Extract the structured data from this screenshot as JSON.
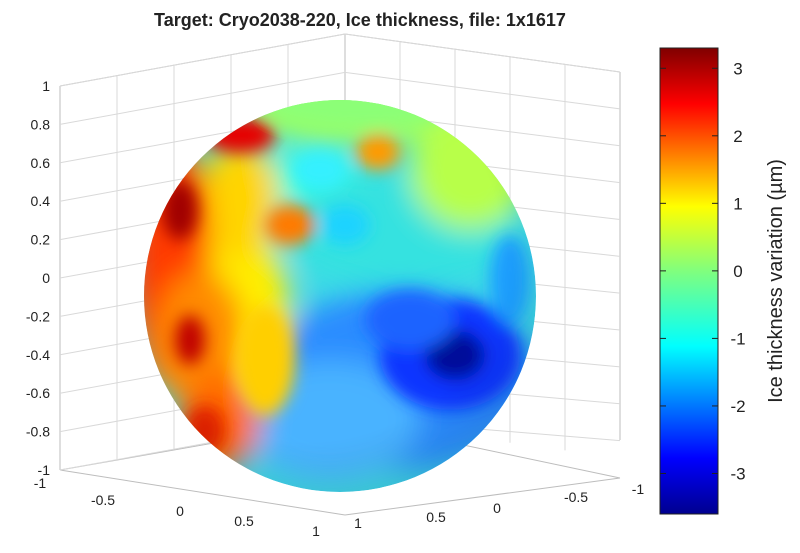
{
  "chart_data": {
    "type": "heatmap",
    "title": "Target: Cryo2038-220, Ice thickness, file: 1x1617",
    "colorbar": {
      "label": "Ice thickness variation (µm)",
      "range": [
        -3.6,
        3.3
      ],
      "ticks": [
        "3",
        "2",
        "1",
        "0",
        "-1",
        "-2",
        "-3"
      ],
      "tick_values": [
        3,
        2,
        1,
        0,
        -1,
        -2,
        -3
      ],
      "colormap": "jet"
    },
    "z_axis": {
      "range": [
        -1,
        1
      ],
      "ticks": [
        "1",
        "0.8",
        "0.6",
        "0.4",
        "0.2",
        "0",
        "-0.2",
        "-0.4",
        "-0.6",
        "-0.8",
        "-1"
      ]
    },
    "x_axis": {
      "range": [
        -1,
        1
      ],
      "ticks": [
        "-1",
        "-0.5",
        "0",
        "0.5",
        "1"
      ]
    },
    "y_axis": {
      "range": [
        -1,
        1
      ],
      "ticks": [
        "1",
        "0.5",
        "0",
        "-0.5",
        "-1"
      ]
    },
    "grid": true,
    "surface": "sphere",
    "features": [
      {
        "region": "upper-left rim",
        "value": 3.2
      },
      {
        "region": "left edge middle",
        "value": 2.8
      },
      {
        "region": "lower-left",
        "value": 2.2
      },
      {
        "region": "left-center",
        "value": 1.2
      },
      {
        "region": "upper-center spot",
        "value": 1.6
      },
      {
        "region": "upper-center band",
        "value": -0.8
      },
      {
        "region": "top cap",
        "value": 0
      },
      {
        "region": "center",
        "value": -1.0
      },
      {
        "region": "lower-right",
        "value": -3.6
      },
      {
        "region": "bottom",
        "value": -1.2
      }
    ]
  }
}
